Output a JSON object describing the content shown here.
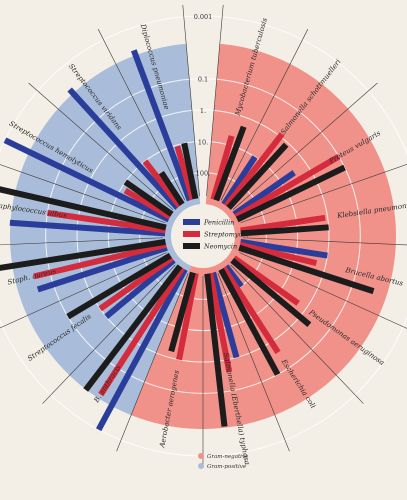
{
  "chart_data": {
    "type": "radial-bar",
    "scale": "log",
    "tick_labels": [
      "0.001",
      "0.1",
      "1.",
      "10.",
      "100."
    ],
    "tick_values": [
      0.001,
      0.1,
      1,
      10,
      100
    ],
    "series": [
      {
        "name": "Penicillin",
        "color": "#2b3d9a"
      },
      {
        "name": "Streptomycin",
        "color": "#d42c3c"
      },
      {
        "name": "Neomycin",
        "color": "#1c1c1c"
      }
    ],
    "groups": [
      {
        "name": "Gram-negative",
        "color": "#f0918a"
      },
      {
        "name": "Gram-positive",
        "color": "#a9bcd9"
      }
    ],
    "organisms": [
      {
        "name": "Mycobacterium tuberculosis",
        "group": "Gram-negative",
        "values": [
          800,
          5,
          2
        ]
      },
      {
        "name": "Salmonella schottmuelleri",
        "group": "Gram-negative",
        "values": [
          10,
          0.8,
          1.2
        ]
      },
      {
        "name": "Proteus vulgaris",
        "group": "Gram-negative",
        "values": [
          3,
          0.1,
          0.1
        ]
      },
      {
        "name": "Klebsiella pneumoniae",
        "group": "Gram-negative",
        "values": [
          850,
          1.2,
          1
        ]
      },
      {
        "name": "Brucella abortus",
        "group": "Gram-negative",
        "values": [
          1,
          2,
          0.02
        ]
      },
      {
        "name": "Pseudomonas aeruginosa",
        "group": "Gram-negative",
        "values": [
          850,
          2,
          0.4
        ]
      },
      {
        "name": "Escherichia coli",
        "group": "Gram-negative",
        "values": [
          100,
          0.4,
          0.1
        ]
      },
      {
        "name": "Salmonella (Eberthella) typhosa",
        "group": "Gram-negative",
        "values": [
          1,
          0.4,
          0.008
        ]
      },
      {
        "name": "Aerobacter aerogenes",
        "group": "Gram-negative",
        "values": [
          870,
          1,
          1.6
        ]
      },
      {
        "name": "B. anthracis",
        "group": "Gram-positive",
        "values": [
          0.001,
          0.01,
          0.007
        ]
      },
      {
        "name": "Streptococcus fecalis",
        "group": "Gram-positive",
        "values": [
          1,
          1,
          0.1
        ]
      },
      {
        "name": "Staph. aureus",
        "group": "Gram-positive",
        "values": [
          0.03,
          0.03,
          0.001
        ]
      },
      {
        "name": "Staphylococcus albus",
        "group": "Gram-positive",
        "values": [
          0.007,
          0.1,
          0.001
        ]
      },
      {
        "name": "Streptococcus hemolyticus",
        "group": "Gram-positive",
        "values": [
          0.001,
          14,
          10
        ]
      },
      {
        "name": "Streptococcus viridans",
        "group": "Gram-positive",
        "values": [
          0.005,
          10,
          40
        ]
      },
      {
        "name": "Diplococcus pneumoniae",
        "group": "Gram-positive",
        "values": [
          0.005,
          11,
          10
        ]
      }
    ]
  }
}
